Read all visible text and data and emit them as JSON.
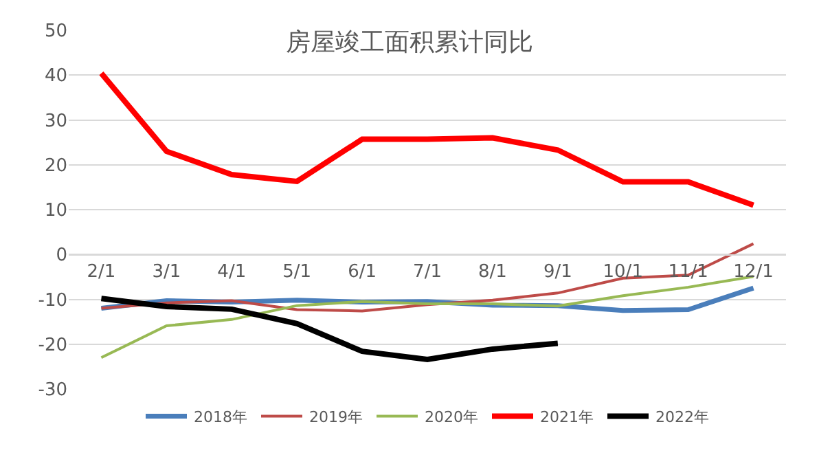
{
  "chart_data": {
    "type": "line",
    "title": "房屋竣工面积累计同比",
    "categories": [
      "2/1",
      "3/1",
      "4/1",
      "5/1",
      "6/1",
      "7/1",
      "8/1",
      "9/1",
      "10/1",
      "11/1",
      "12/1"
    ],
    "series": [
      {
        "name": "2018年",
        "color": "#4a7ebb",
        "values": [
          -12,
          -10.3,
          -10.6,
          -10.2,
          -10.6,
          -10.5,
          -11.3,
          -11.4,
          -12.5,
          -12.3,
          -7.5
        ]
      },
      {
        "name": "2019年",
        "color": "#be4b48",
        "values": [
          -12,
          -10.8,
          -10.3,
          -12.3,
          -12.6,
          -11.2,
          -10.2,
          -8.6,
          -5.3,
          -4.6,
          2.4
        ]
      },
      {
        "name": "2020年",
        "color": "#98b954",
        "values": [
          -23,
          -15.9,
          -14.5,
          -11.4,
          -10.5,
          -11,
          -11,
          -11.5,
          -9.2,
          -7.3,
          -4.9
        ]
      },
      {
        "name": "2021年",
        "color": "#ff0000",
        "values": [
          40.4,
          23,
          17.8,
          16.3,
          25.7,
          25.7,
          26,
          23.3,
          16.2,
          16.2,
          11
        ]
      },
      {
        "name": "2022年",
        "color": "#000000",
        "values": [
          -9.8,
          -11.6,
          -12.2,
          -15.4,
          -21.6,
          -23.4,
          -21.1,
          -19.8,
          null,
          null,
          null
        ]
      }
    ],
    "ylim": [
      -30,
      50
    ],
    "yticks": [
      -30,
      -20,
      -10,
      0,
      10,
      20,
      30,
      40,
      50
    ],
    "grid": "y",
    "legend": "bottom",
    "marker": "none",
    "line_style": "solid"
  }
}
